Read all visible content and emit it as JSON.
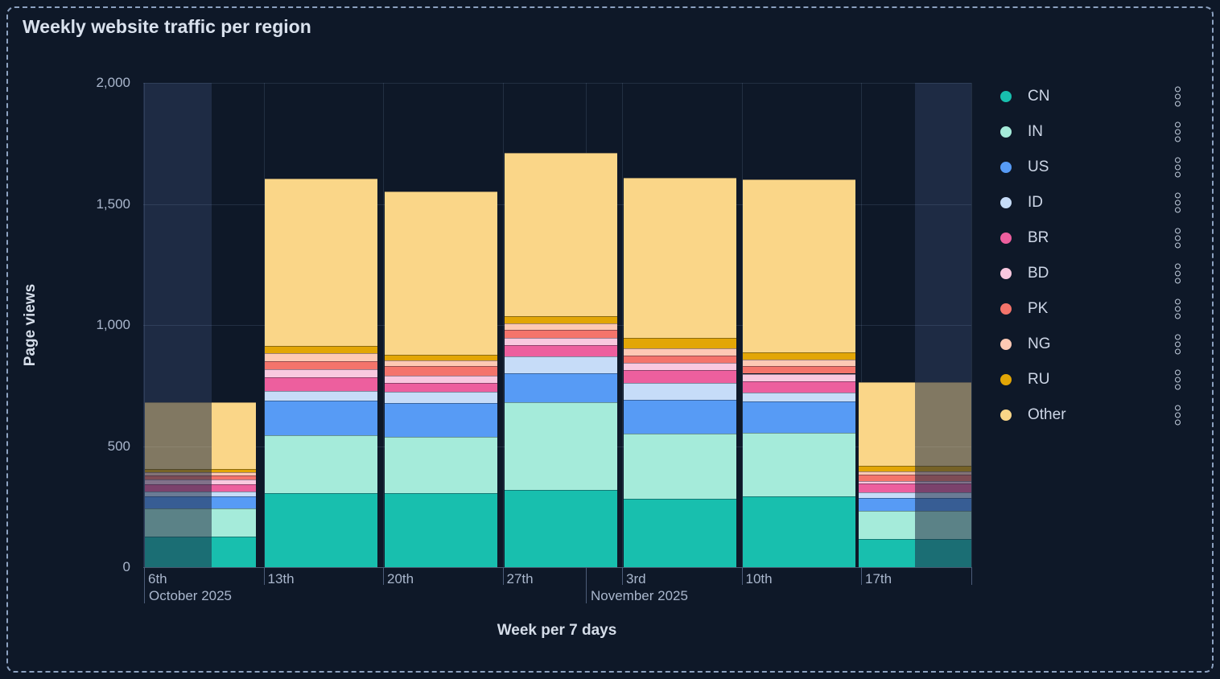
{
  "title": "Weekly website traffic per region",
  "axes": {
    "y_label": "Page views",
    "x_label": "Week per 7 days",
    "y_tick_labels": [
      "0",
      "500",
      "1,000",
      "1,500",
      "2,000"
    ],
    "x_tick_labels": [
      "6th",
      "13th",
      "20th",
      "27th",
      "3rd",
      "10th",
      "17th"
    ],
    "month_labels": [
      "October 2025",
      "November 2025"
    ]
  },
  "legend": {
    "position": "right",
    "menu_icon": "vertical-dots-icon",
    "items": [
      {
        "label": "CN",
        "color": "#18BFAE"
      },
      {
        "label": "IN",
        "color": "#A5EBDA"
      },
      {
        "label": "US",
        "color": "#579BF5"
      },
      {
        "label": "ID",
        "color": "#C6DCF8"
      },
      {
        "label": "BR",
        "color": "#ED5F9E"
      },
      {
        "label": "BD",
        "color": "#F9C8DF"
      },
      {
        "label": "PK",
        "color": "#F4746B"
      },
      {
        "label": "NG",
        "color": "#FEC9B4"
      },
      {
        "label": "RU",
        "color": "#E2A606"
      },
      {
        "label": "Other",
        "color": "#FAD688"
      }
    ]
  },
  "chart_data": {
    "type": "bar",
    "stacked": true,
    "title": "Weekly website traffic per region",
    "xlabel": "Week per 7 days",
    "ylabel": "Page views",
    "ylim": [
      0,
      2000
    ],
    "y_ticks": [
      0,
      500,
      1000,
      1500,
      2000
    ],
    "grid": true,
    "legend_position": "right",
    "categories": [
      "Oct 6th",
      "Oct 13th",
      "Oct 20th",
      "Oct 27th",
      "Nov 3rd",
      "Nov 10th",
      "Nov 17th"
    ],
    "series": [
      {
        "name": "CN",
        "color": "#18BFAE",
        "values": [
          125,
          307,
          307,
          318,
          282,
          291,
          116
        ]
      },
      {
        "name": "IN",
        "color": "#A5EBDA",
        "values": [
          117,
          238,
          230,
          363,
          268,
          264,
          116
        ]
      },
      {
        "name": "US",
        "color": "#579BF5",
        "values": [
          52,
          142,
          141,
          120,
          140,
          131,
          53
        ]
      },
      {
        "name": "ID",
        "color": "#C6DCF8",
        "values": [
          19,
          42,
          47,
          71,
          72,
          36,
          23
        ]
      },
      {
        "name": "BR",
        "color": "#ED5F9E",
        "values": [
          29,
          55,
          37,
          45,
          52,
          47,
          37
        ]
      },
      {
        "name": "BD",
        "color": "#F9C8DF",
        "values": [
          19,
          34,
          30,
          31,
          31,
          30,
          12
        ]
      },
      {
        "name": "PK",
        "color": "#F4746B",
        "values": [
          17,
          32,
          38,
          31,
          30,
          31,
          24
        ]
      },
      {
        "name": "NG",
        "color": "#FEC9B4",
        "values": [
          13,
          34,
          23,
          27,
          30,
          28,
          14
        ]
      },
      {
        "name": "RU",
        "color": "#E2A606",
        "values": [
          14,
          30,
          23,
          31,
          42,
          28,
          22
        ]
      },
      {
        "name": "Other",
        "color": "#FAD688",
        "values": [
          277,
          691,
          674,
          673,
          662,
          715,
          348
        ]
      }
    ],
    "totals": [
      682,
      1605,
      1550,
      1710,
      1609,
      1601,
      765
    ],
    "edge_weeks_dimmed": [
      "Oct 6th",
      "Nov 17th"
    ]
  }
}
